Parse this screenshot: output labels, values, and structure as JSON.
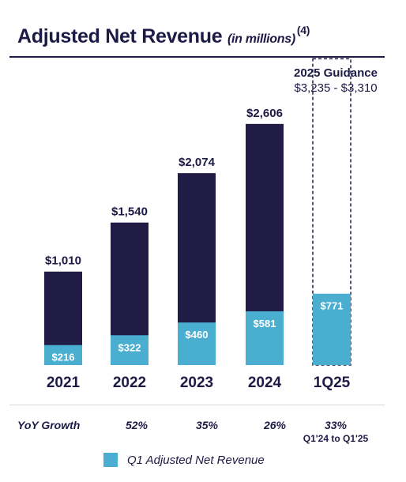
{
  "title": {
    "main": "Adjusted Net Revenue",
    "sub": "(in millions)",
    "footnote": "(4)"
  },
  "guidance": {
    "title": "2025 Guidance",
    "range": "$3,235 - $3,310"
  },
  "colors": {
    "total": "#201c46",
    "q1": "#4aaed1",
    "text": "#1d1a46"
  },
  "chart_data": {
    "type": "bar",
    "categories": [
      "2021",
      "2022",
      "2023",
      "2024",
      "1Q25"
    ],
    "series": [
      {
        "name": "Adjusted Net Revenue",
        "values": [
          1010,
          1540,
          2074,
          2606,
          null
        ],
        "labels": [
          "$1,010",
          "$1,540",
          "$2,074",
          "$2,606",
          ""
        ]
      },
      {
        "name": "Q1 Adjusted Net Revenue",
        "values": [
          216,
          322,
          460,
          581,
          771
        ],
        "labels": [
          "$216",
          "$322",
          "$460",
          "$581",
          "$771"
        ]
      }
    ],
    "guidance_range": [
      3235,
      3310
    ],
    "ylim": [
      0,
      3310
    ]
  },
  "growth": {
    "label": "YoY Growth",
    "values": [
      "52%",
      "35%",
      "26%",
      "33%"
    ],
    "note": "Q1'24 to Q1'25"
  },
  "legend": {
    "label": "Q1 Adjusted Net Revenue"
  }
}
